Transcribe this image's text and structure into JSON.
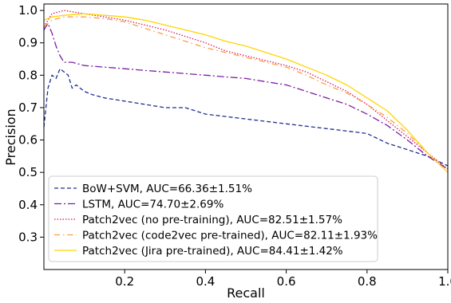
{
  "chart_data": {
    "type": "line",
    "title": "",
    "xlabel": "Recall",
    "ylabel": "Precision",
    "xlim": [
      0.0,
      1.0
    ],
    "ylim": [
      0.2,
      1.02
    ],
    "grid": false,
    "legend_position": "lower-left",
    "x_ticks": [
      {
        "value": 0.2,
        "label": "0.2"
      },
      {
        "value": 0.4,
        "label": "0.4"
      },
      {
        "value": 0.6,
        "label": "0.6"
      },
      {
        "value": 0.8,
        "label": "0.8"
      },
      {
        "value": 1.0,
        "label": "1.0"
      }
    ],
    "y_ticks": [
      {
        "value": 0.3,
        "label": "0.3"
      },
      {
        "value": 0.4,
        "label": "0.4"
      },
      {
        "value": 0.5,
        "label": "0.5"
      },
      {
        "value": 0.6,
        "label": "0.6"
      },
      {
        "value": 0.7,
        "label": "0.7"
      },
      {
        "value": 0.8,
        "label": "0.8"
      },
      {
        "value": 0.9,
        "label": "0.9"
      },
      {
        "value": 1.0,
        "label": "1.0"
      }
    ],
    "series": [
      {
        "name": "BoW+SVM, AUC=66.36±1.51%",
        "color": "#1f2f8f",
        "dash": "5,3",
        "x": [
          0.0,
          0.01,
          0.02,
          0.03,
          0.04,
          0.05,
          0.06,
          0.065,
          0.07,
          0.08,
          0.09,
          0.1,
          0.12,
          0.15,
          0.2,
          0.25,
          0.3,
          0.35,
          0.4,
          0.5,
          0.6,
          0.7,
          0.8,
          0.85,
          0.9,
          0.95,
          1.0
        ],
        "y": [
          0.64,
          0.76,
          0.8,
          0.79,
          0.82,
          0.81,
          0.8,
          0.78,
          0.76,
          0.77,
          0.76,
          0.75,
          0.74,
          0.73,
          0.72,
          0.71,
          0.7,
          0.7,
          0.68,
          0.665,
          0.65,
          0.635,
          0.62,
          0.59,
          0.57,
          0.55,
          0.52
        ]
      },
      {
        "name": "LSTM, AUC=74.70±2.69%",
        "color": "#7b1fa2",
        "dash": "9,3,2,3",
        "x": [
          0.0,
          0.01,
          0.02,
          0.03,
          0.04,
          0.05,
          0.07,
          0.1,
          0.15,
          0.2,
          0.25,
          0.3,
          0.35,
          0.4,
          0.45,
          0.5,
          0.55,
          0.6,
          0.65,
          0.7,
          0.75,
          0.8,
          0.85,
          0.9,
          0.95,
          1.0
        ],
        "y": [
          0.94,
          0.96,
          0.93,
          0.89,
          0.86,
          0.84,
          0.84,
          0.83,
          0.825,
          0.82,
          0.815,
          0.81,
          0.805,
          0.8,
          0.795,
          0.79,
          0.78,
          0.77,
          0.75,
          0.73,
          0.71,
          0.68,
          0.645,
          0.6,
          0.55,
          0.51
        ]
      },
      {
        "name": "Patch2vec (no pre-training), AUC=82.51±1.57%",
        "color": "#d81b60",
        "dash": "1.5,2",
        "x": [
          0.0,
          0.02,
          0.05,
          0.1,
          0.15,
          0.2,
          0.25,
          0.3,
          0.35,
          0.4,
          0.45,
          0.5,
          0.55,
          0.6,
          0.65,
          0.7,
          0.75,
          0.8,
          0.85,
          0.9,
          0.95,
          1.0
        ],
        "y": [
          0.95,
          0.99,
          1.0,
          0.99,
          0.98,
          0.97,
          0.955,
          0.94,
          0.92,
          0.9,
          0.875,
          0.86,
          0.845,
          0.83,
          0.81,
          0.78,
          0.75,
          0.71,
          0.66,
          0.61,
          0.56,
          0.51
        ]
      },
      {
        "name": "Patch2vec (code2vec pre-trained), AUC=82.11±1.93%",
        "color": "#ff9e40",
        "dash": "7,4,1.5,4",
        "x": [
          0.0,
          0.02,
          0.05,
          0.1,
          0.15,
          0.2,
          0.25,
          0.3,
          0.35,
          0.4,
          0.45,
          0.5,
          0.55,
          0.6,
          0.65,
          0.7,
          0.75,
          0.8,
          0.85,
          0.9,
          0.95,
          1.0
        ],
        "y": [
          0.95,
          0.97,
          0.98,
          0.98,
          0.975,
          0.965,
          0.945,
          0.925,
          0.905,
          0.885,
          0.87,
          0.855,
          0.84,
          0.825,
          0.8,
          0.77,
          0.745,
          0.71,
          0.67,
          0.62,
          0.56,
          0.5
        ]
      },
      {
        "name": "Patch2vec (Jira pre-trained), AUC=84.41±1.42%",
        "color": "#ffd600",
        "dash": "",
        "x": [
          0.0,
          0.02,
          0.05,
          0.1,
          0.15,
          0.2,
          0.25,
          0.3,
          0.35,
          0.4,
          0.45,
          0.5,
          0.55,
          0.6,
          0.65,
          0.7,
          0.75,
          0.8,
          0.85,
          0.9,
          0.95,
          1.0
        ],
        "y": [
          0.97,
          0.98,
          0.985,
          0.99,
          0.985,
          0.98,
          0.97,
          0.955,
          0.94,
          0.925,
          0.905,
          0.89,
          0.87,
          0.85,
          0.825,
          0.8,
          0.77,
          0.73,
          0.69,
          0.63,
          0.56,
          0.5
        ]
      }
    ]
  }
}
